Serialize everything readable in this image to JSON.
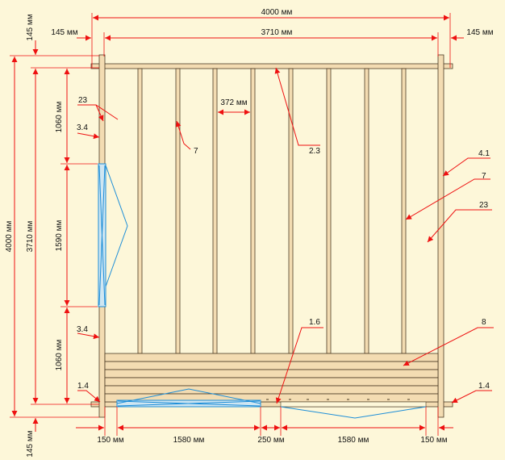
{
  "dimensions": {
    "total_width": "4000 мм",
    "inner_width": "3710 мм",
    "left_offset": "145 мм",
    "right_offset": "145 мм",
    "top_offset": "145 мм",
    "bottom_offset": "145 мм",
    "total_height": "4000 мм",
    "inner_height": "3710 мм",
    "stud_spacing": "372 мм",
    "top_window_gap": "1060 мм",
    "window_height": "1590 мм",
    "bottom_window_gap": "1060 мм",
    "bottom_1": "150 мм",
    "bottom_2": "1580 мм",
    "bottom_3": "250 мм",
    "bottom_4": "1580 мм",
    "bottom_5": "150 мм"
  },
  "callouts": {
    "c23_left": "23",
    "c34_top": "3.4",
    "c7_left": "7",
    "c23_top": "2.3",
    "c41": "4.1",
    "c7_right": "7",
    "c23_right": "23",
    "c34_bottom": "3.4",
    "c16": "1.6",
    "c8": "8",
    "c14_left": "1.4",
    "c14_right": "1.4"
  },
  "colors": {
    "dimension": "#ee1111",
    "wood": "#f3dcb2",
    "outline": "#4a3a24",
    "opening": "#1d8ed8",
    "background": "#fdf7d9"
  }
}
